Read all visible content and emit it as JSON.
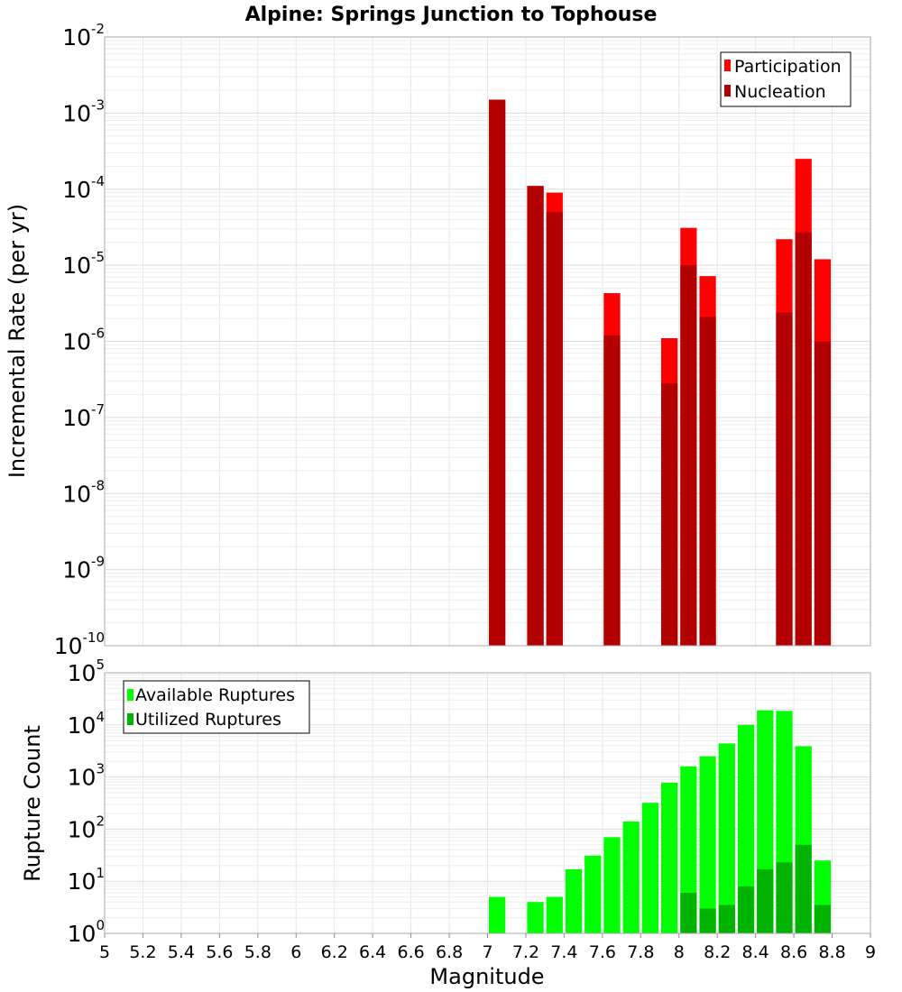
{
  "chart_data": [
    {
      "type": "bar",
      "title": "Alpine: Springs Junction to Tophouse",
      "xlabel": "",
      "ylabel": "Incremental Rate (per yr)",
      "yscale": "log",
      "xlim": [
        5,
        9
      ],
      "ylim_exponents": [
        -10,
        -2
      ],
      "bin_width": 0.1,
      "grid": true,
      "legend_position": "top-right",
      "series": [
        {
          "name": "Participation",
          "color": "#ff0000",
          "points": [
            {
              "x": 7.05,
              "y": 0.0015
            },
            {
              "x": 7.25,
              "y": 0.00011
            },
            {
              "x": 7.35,
              "y": 9e-05
            },
            {
              "x": 7.65,
              "y": 4.3e-06
            },
            {
              "x": 7.95,
              "y": 1.1e-06
            },
            {
              "x": 8.05,
              "y": 3.1e-05
            },
            {
              "x": 8.15,
              "y": 7.2e-06
            },
            {
              "x": 8.55,
              "y": 2.2e-05
            },
            {
              "x": 8.65,
              "y": 0.00025
            },
            {
              "x": 8.75,
              "y": 1.2e-05
            }
          ]
        },
        {
          "name": "Nucleation",
          "color": "#b30000",
          "points": [
            {
              "x": 7.05,
              "y": 0.0015
            },
            {
              "x": 7.25,
              "y": 0.00011
            },
            {
              "x": 7.35,
              "y": 5e-05
            },
            {
              "x": 7.65,
              "y": 1.2e-06
            },
            {
              "x": 7.95,
              "y": 2.8e-07
            },
            {
              "x": 8.05,
              "y": 1e-05
            },
            {
              "x": 8.15,
              "y": 2.1e-06
            },
            {
              "x": 8.55,
              "y": 2.4e-06
            },
            {
              "x": 8.65,
              "y": 2.7e-05
            },
            {
              "x": 8.75,
              "y": 1e-06
            }
          ]
        }
      ]
    },
    {
      "type": "bar",
      "title": "",
      "xlabel": "Magnitude",
      "ylabel": "Rupture Count",
      "yscale": "log",
      "xlim": [
        5,
        9
      ],
      "ylim_exponents": [
        0,
        5
      ],
      "bin_width": 0.1,
      "grid": true,
      "legend_position": "top-left",
      "x_tick_labels": [
        "5",
        "5.2",
        "5.4",
        "5.6",
        "5.8",
        "6",
        "6.2",
        "6.4",
        "6.6",
        "6.8",
        "7",
        "7.2",
        "7.4",
        "7.6",
        "7.8",
        "8",
        "8.2",
        "8.4",
        "8.6",
        "8.8",
        "9"
      ],
      "series": [
        {
          "name": "Available Ruptures",
          "color": "#00ff00",
          "points": [
            {
              "x": 7.05,
              "y": 5
            },
            {
              "x": 7.25,
              "y": 4
            },
            {
              "x": 7.35,
              "y": 5
            },
            {
              "x": 7.45,
              "y": 17
            },
            {
              "x": 7.55,
              "y": 31
            },
            {
              "x": 7.65,
              "y": 70
            },
            {
              "x": 7.75,
              "y": 140
            },
            {
              "x": 7.85,
              "y": 320
            },
            {
              "x": 7.95,
              "y": 780
            },
            {
              "x": 8.05,
              "y": 1600
            },
            {
              "x": 8.15,
              "y": 2500
            },
            {
              "x": 8.25,
              "y": 4400
            },
            {
              "x": 8.35,
              "y": 10000
            },
            {
              "x": 8.45,
              "y": 19000
            },
            {
              "x": 8.55,
              "y": 18500
            },
            {
              "x": 8.65,
              "y": 3900
            },
            {
              "x": 8.75,
              "y": 25
            }
          ]
        },
        {
          "name": "Utilized Ruptures",
          "color": "#00b300",
          "points": [
            {
              "x": 7.05,
              "y": 1
            },
            {
              "x": 7.25,
              "y": 1
            },
            {
              "x": 7.35,
              "y": 1
            },
            {
              "x": 7.65,
              "y": 1
            },
            {
              "x": 7.95,
              "y": 1
            },
            {
              "x": 8.05,
              "y": 6
            },
            {
              "x": 8.15,
              "y": 3
            },
            {
              "x": 8.25,
              "y": 3.5
            },
            {
              "x": 8.35,
              "y": 8
            },
            {
              "x": 8.45,
              "y": 17
            },
            {
              "x": 8.55,
              "y": 23
            },
            {
              "x": 8.65,
              "y": 50
            },
            {
              "x": 8.75,
              "y": 3.5
            }
          ]
        }
      ]
    }
  ]
}
